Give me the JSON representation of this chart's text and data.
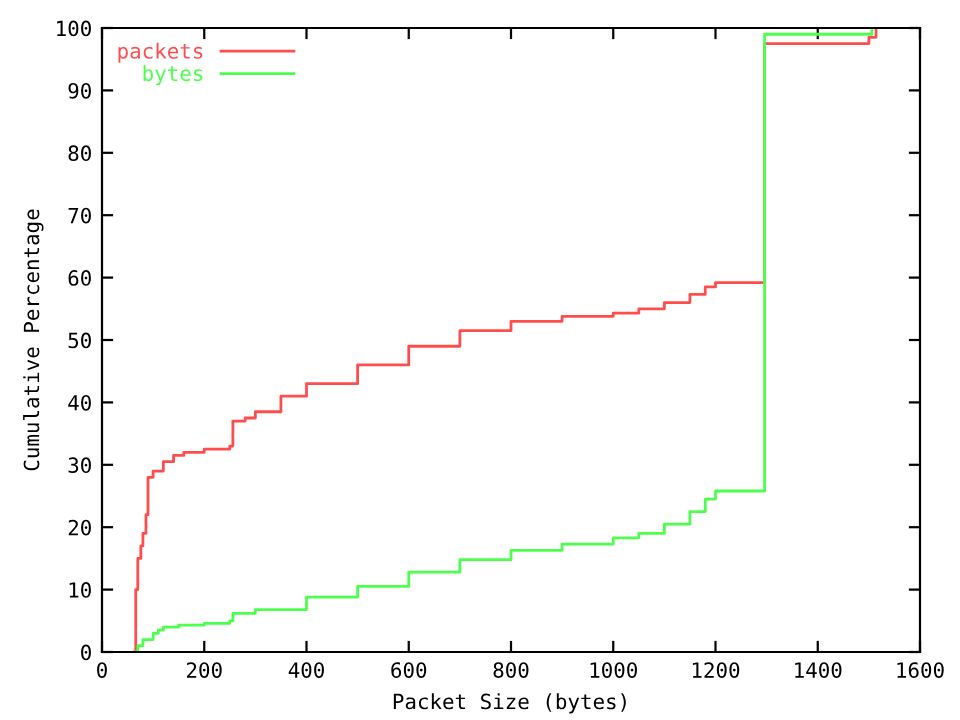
{
  "chart_data": {
    "type": "step",
    "xlabel": "Packet Size (bytes)",
    "ylabel": "Cumulative Percentage",
    "xlim": [
      0,
      1600
    ],
    "ylim": [
      0,
      100
    ],
    "xticks": [
      0,
      200,
      400,
      600,
      800,
      1000,
      1200,
      1400,
      1600
    ],
    "yticks": [
      0,
      10,
      20,
      30,
      40,
      50,
      60,
      70,
      80,
      90,
      100
    ],
    "legend": "top left",
    "grid": false,
    "series": [
      {
        "name": "packets",
        "color": "#ff4d4d",
        "x": [
          64,
          66,
          70,
          76,
          80,
          86,
          90,
          100,
          120,
          140,
          160,
          200,
          250,
          256,
          280,
          300,
          350,
          400,
          500,
          600,
          700,
          800,
          900,
          1000,
          1050,
          1100,
          1150,
          1180,
          1200,
          1296,
          1500,
          1514
        ],
        "values": [
          0,
          10,
          15,
          17,
          19,
          22,
          28,
          29,
          30.5,
          31.5,
          32,
          32.5,
          33,
          37,
          37.5,
          38.5,
          41,
          43,
          46,
          49,
          51.5,
          53,
          53.8,
          54.3,
          55,
          56,
          57.3,
          58.5,
          59.2,
          97.5,
          98.5,
          100
        ]
      },
      {
        "name": "bytes",
        "color": "#4dff4d",
        "x": [
          64,
          70,
          80,
          100,
          110,
          120,
          150,
          200,
          250,
          256,
          300,
          400,
          500,
          600,
          700,
          800,
          900,
          1000,
          1050,
          1100,
          1150,
          1180,
          1200,
          1296,
          1506
        ],
        "values": [
          0,
          1,
          2,
          3,
          3.5,
          4,
          4.3,
          4.6,
          5,
          6.2,
          6.8,
          8.8,
          10.5,
          12.8,
          14.8,
          16.3,
          17.3,
          18.3,
          19,
          20.5,
          22.5,
          24.5,
          25.8,
          99,
          100
        ]
      }
    ]
  }
}
